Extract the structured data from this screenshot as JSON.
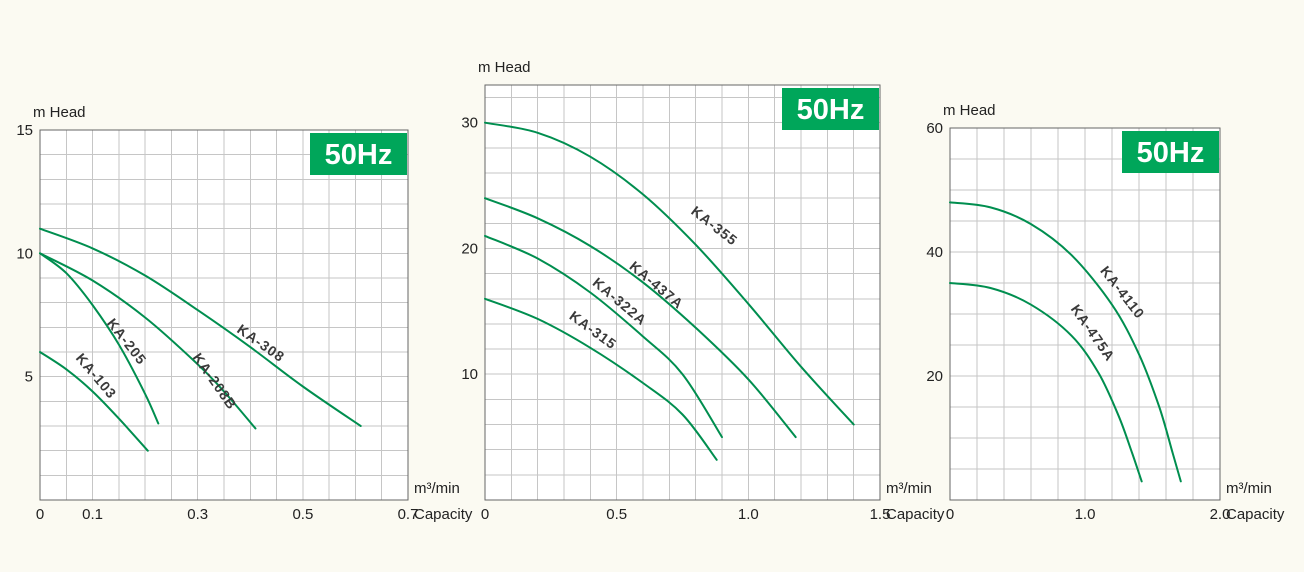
{
  "page": {
    "description": "Pump head-capacity performance curves, three panels, 50Hz"
  },
  "style": {
    "curve_color": "#008e4f",
    "badge_bg": "#00a65a",
    "badge_text_color": "#ffffff",
    "grid_color": "#c6c6c6",
    "axis_color": "#666666",
    "plot_bg": "#ffffff",
    "text_color": "#222222"
  },
  "chart_data": [
    {
      "id": "left",
      "type": "line",
      "badge": "50Hz",
      "head_axis_caption": "m Head",
      "flow_unit_caption": "m³/min",
      "flow_axis_caption": "Capacity",
      "x": {
        "min": 0,
        "max": 0.7,
        "grid_step": 0.05,
        "ticks": [
          {
            "v": 0,
            "label": "0"
          },
          {
            "v": 0.1,
            "label": "0.1"
          },
          {
            "v": 0.3,
            "label": "0.3"
          },
          {
            "v": 0.5,
            "label": "0.5"
          },
          {
            "v": 0.7,
            "label": "0.7"
          }
        ]
      },
      "y": {
        "min": 0,
        "max": 15,
        "grid_step": 1,
        "ticks": [
          {
            "v": 5,
            "label": "5"
          },
          {
            "v": 10,
            "label": "10"
          },
          {
            "v": 15,
            "label": "15"
          }
        ]
      },
      "series": [
        {
          "name": "KA-103",
          "points": [
            [
              0,
              6.0
            ],
            [
              0.05,
              5.3
            ],
            [
              0.1,
              4.4
            ],
            [
              0.15,
              3.3
            ],
            [
              0.205,
              2.0
            ]
          ],
          "label": {
            "x": 0.1,
            "y": 4.9,
            "angle": 50
          }
        },
        {
          "name": "KA-205",
          "points": [
            [
              0,
              10.0
            ],
            [
              0.05,
              9.2
            ],
            [
              0.1,
              7.9
            ],
            [
              0.15,
              6.3
            ],
            [
              0.2,
              4.3
            ],
            [
              0.225,
              3.1
            ]
          ],
          "label": {
            "x": 0.158,
            "y": 6.3,
            "angle": 52
          }
        },
        {
          "name": "KA-208B",
          "points": [
            [
              0,
              10.0
            ],
            [
              0.1,
              8.9
            ],
            [
              0.2,
              7.4
            ],
            [
              0.3,
              5.5
            ],
            [
              0.35,
              4.4
            ],
            [
              0.41,
              2.9
            ]
          ],
          "label": {
            "x": 0.325,
            "y": 4.7,
            "angle": 55
          }
        },
        {
          "name": "KA-308",
          "points": [
            [
              0,
              11.0
            ],
            [
              0.1,
              10.2
            ],
            [
              0.2,
              9.1
            ],
            [
              0.3,
              7.7
            ],
            [
              0.4,
              6.2
            ],
            [
              0.5,
              4.6
            ],
            [
              0.61,
              3.0
            ]
          ],
          "label": {
            "x": 0.415,
            "y": 6.2,
            "angle": 35
          }
        }
      ]
    },
    {
      "id": "middle",
      "type": "line",
      "badge": "50Hz",
      "head_axis_caption": "m Head",
      "flow_unit_caption": "m³/min",
      "flow_axis_caption": "Capacity",
      "x": {
        "min": 0,
        "max": 1.5,
        "grid_step": 0.1,
        "ticks": [
          {
            "v": 0,
            "label": "0"
          },
          {
            "v": 0.5,
            "label": "0.5"
          },
          {
            "v": 1.0,
            "label": "1.0"
          },
          {
            "v": 1.5,
            "label": "1.5"
          }
        ]
      },
      "y": {
        "min": 0,
        "max": 33,
        "grid_step": 2,
        "ticks": [
          {
            "v": 10,
            "label": "10"
          },
          {
            "v": 20,
            "label": "20"
          },
          {
            "v": 30,
            "label": "30"
          }
        ]
      },
      "series": [
        {
          "name": "KA-315",
          "points": [
            [
              0,
              16.0
            ],
            [
              0.2,
              14.4
            ],
            [
              0.4,
              12.1
            ],
            [
              0.6,
              9.3
            ],
            [
              0.75,
              6.8
            ],
            [
              0.88,
              3.2
            ]
          ],
          "label": {
            "x": 0.4,
            "y": 13.2,
            "angle": 36
          }
        },
        {
          "name": "KA-322A",
          "points": [
            [
              0,
              21.0
            ],
            [
              0.2,
              19.2
            ],
            [
              0.4,
              16.5
            ],
            [
              0.6,
              13.0
            ],
            [
              0.75,
              10.0
            ],
            [
              0.9,
              5.0
            ]
          ],
          "label": {
            "x": 0.5,
            "y": 15.5,
            "angle": 40
          }
        },
        {
          "name": "KA-437A",
          "points": [
            [
              0,
              24.0
            ],
            [
              0.2,
              22.4
            ],
            [
              0.4,
              20.2
            ],
            [
              0.6,
              17.3
            ],
            [
              0.8,
              13.7
            ],
            [
              1.0,
              9.6
            ],
            [
              1.18,
              5.0
            ]
          ],
          "label": {
            "x": 0.64,
            "y": 16.8,
            "angle": 40
          }
        },
        {
          "name": "KA-355",
          "points": [
            [
              0,
              30.0
            ],
            [
              0.2,
              29.2
            ],
            [
              0.4,
              27.3
            ],
            [
              0.6,
              24.3
            ],
            [
              0.8,
              20.3
            ],
            [
              1.0,
              15.6
            ],
            [
              1.2,
              10.6
            ],
            [
              1.4,
              6.0
            ]
          ],
          "label": {
            "x": 0.86,
            "y": 21.5,
            "angle": 38
          }
        }
      ]
    },
    {
      "id": "right",
      "type": "line",
      "badge": "50Hz",
      "head_axis_caption": "m Head",
      "flow_unit_caption": "m³/min",
      "flow_axis_caption": "Capacity",
      "x": {
        "min": 0,
        "max": 2.0,
        "grid_step": 0.2,
        "ticks": [
          {
            "v": 0,
            "label": "0"
          },
          {
            "v": 1.0,
            "label": "1.0"
          },
          {
            "v": 2.0,
            "label": "2.0"
          }
        ]
      },
      "y": {
        "min": 0,
        "max": 60,
        "grid_step": 5,
        "ticks": [
          {
            "v": 20,
            "label": "20"
          },
          {
            "v": 40,
            "label": "40"
          },
          {
            "v": 60,
            "label": "60"
          }
        ]
      },
      "series": [
        {
          "name": "KA-475A",
          "points": [
            [
              0,
              35.0
            ],
            [
              0.3,
              34.2
            ],
            [
              0.6,
              31.5
            ],
            [
              0.9,
              26.5
            ],
            [
              1.1,
              20.5
            ],
            [
              1.25,
              13.5
            ],
            [
              1.35,
              7.5
            ],
            [
              1.42,
              3.0
            ]
          ],
          "label": {
            "x": 1.03,
            "y": 26.5,
            "angle": 55
          }
        },
        {
          "name": "KA-4110",
          "points": [
            [
              0,
              48.0
            ],
            [
              0.3,
              47.2
            ],
            [
              0.6,
              44.5
            ],
            [
              0.9,
              39.5
            ],
            [
              1.2,
              31.5
            ],
            [
              1.4,
              23.5
            ],
            [
              1.55,
              15.0
            ],
            [
              1.65,
              7.5
            ],
            [
              1.71,
              3.0
            ]
          ],
          "label": {
            "x": 1.25,
            "y": 33.0,
            "angle": 52
          }
        }
      ]
    }
  ]
}
